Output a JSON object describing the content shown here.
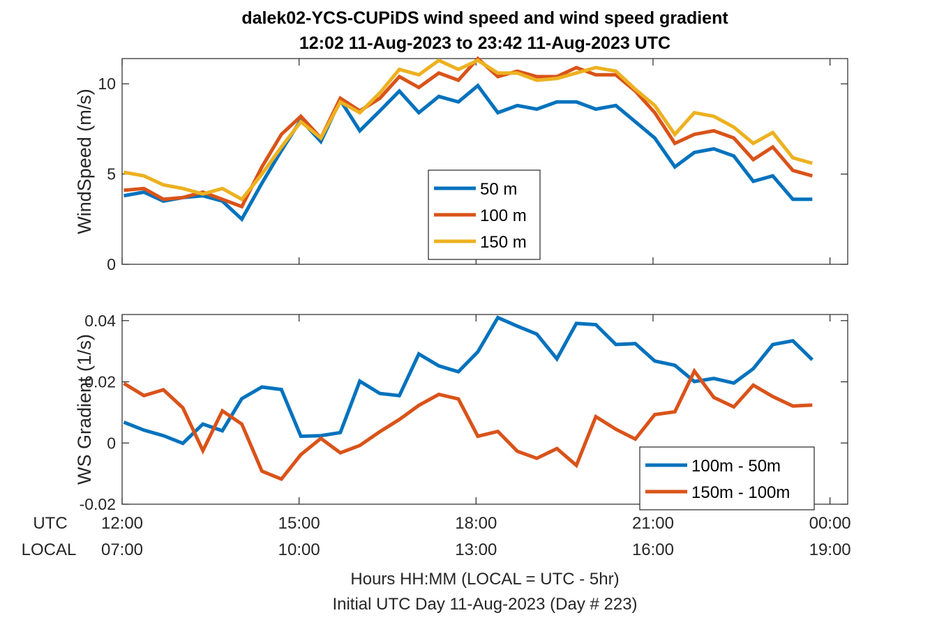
{
  "title_line1": "dalek02-YCS-CUPiDS  wind speed and wind speed gradient",
  "title_line2": "12:02 11-Aug-2023 to 23:42 11-Aug-2023  UTC",
  "xlabel_line1": "Hours HH:MM  (LOCAL = UTC - 5hr)",
  "xlabel_line2": "Initial UTC Day 11-Aug-2023 (Day # 223)",
  "utc_row_label": "UTC",
  "local_row_label": "LOCAL",
  "utc_ticks": [
    "12:00",
    "15:00",
    "18:00",
    "21:00",
    "00:00"
  ],
  "local_ticks": [
    "07:00",
    "10:00",
    "13:00",
    "16:00",
    "19:00"
  ],
  "colors": {
    "blue": "#0072BD",
    "orange": "#D95319",
    "yellow": "#EDB120"
  },
  "chart_data": [
    {
      "type": "line",
      "ylabel": "WindSpeed (m/s)",
      "xlim": [
        12.0,
        24.3
      ],
      "ylim": [
        0,
        11.4
      ],
      "yticks": [
        0,
        5,
        10
      ],
      "ytick_labels": [
        "0",
        "5",
        "10"
      ],
      "legend_position": "center",
      "x": [
        12.03,
        12.37,
        12.7,
        13.03,
        13.37,
        13.7,
        14.03,
        14.37,
        14.7,
        15.03,
        15.37,
        15.7,
        16.03,
        16.37,
        16.7,
        17.03,
        17.37,
        17.7,
        18.03,
        18.37,
        18.7,
        19.03,
        19.37,
        19.7,
        20.03,
        20.37,
        20.7,
        21.03,
        21.37,
        21.7,
        22.03,
        22.37,
        22.7,
        23.03,
        23.37,
        23.7
      ],
      "series": [
        {
          "name": "50 m",
          "color": "blue",
          "values": [
            3.8,
            4.0,
            3.5,
            3.7,
            3.8,
            3.5,
            2.5,
            4.5,
            6.3,
            8.0,
            6.8,
            9.1,
            7.4,
            8.5,
            9.6,
            8.4,
            9.3,
            9.0,
            9.9,
            8.4,
            8.8,
            8.6,
            9.0,
            9.0,
            8.6,
            8.8,
            7.9,
            7.0,
            5.4,
            6.2,
            6.4,
            6.0,
            4.6,
            4.9,
            3.6,
            3.6
          ]
        },
        {
          "name": "100 m",
          "color": "orange",
          "values": [
            4.1,
            4.2,
            3.6,
            3.7,
            4.0,
            3.6,
            3.2,
            5.4,
            7.2,
            8.2,
            7.0,
            9.2,
            8.5,
            9.2,
            10.4,
            9.8,
            10.6,
            10.2,
            11.4,
            10.4,
            10.7,
            10.4,
            10.4,
            10.9,
            10.5,
            10.5,
            9.6,
            8.4,
            6.7,
            7.2,
            7.4,
            7.0,
            5.8,
            6.5,
            5.2,
            4.9
          ]
        },
        {
          "name": "150 m",
          "color": "yellow",
          "values": [
            5.1,
            4.9,
            4.4,
            4.2,
            3.9,
            4.2,
            3.6,
            5.0,
            6.5,
            7.9,
            7.0,
            9.0,
            8.4,
            9.5,
            10.8,
            10.5,
            11.3,
            10.8,
            11.3,
            10.6,
            10.6,
            10.2,
            10.3,
            10.6,
            10.9,
            10.7,
            9.7,
            8.8,
            7.2,
            8.4,
            8.2,
            7.6,
            6.7,
            7.3,
            5.9,
            5.6
          ]
        }
      ]
    },
    {
      "type": "line",
      "ylabel": "WS Gradient (1/s)",
      "xlim": [
        12.0,
        24.3
      ],
      "ylim": [
        -0.02,
        0.042
      ],
      "yticks": [
        -0.02,
        0,
        0.02,
        0.04
      ],
      "ytick_labels": [
        "-0.02",
        "0",
        "0.02",
        "0.04"
      ],
      "legend_position": "bottom-right",
      "x": [
        12.03,
        12.37,
        12.7,
        13.03,
        13.37,
        13.7,
        14.03,
        14.37,
        14.7,
        15.03,
        15.37,
        15.7,
        16.03,
        16.37,
        16.7,
        17.03,
        17.37,
        17.7,
        18.03,
        18.37,
        18.7,
        19.03,
        19.37,
        19.7,
        20.03,
        20.37,
        20.7,
        21.03,
        21.37,
        21.7,
        22.03,
        22.37,
        22.7,
        23.03,
        23.37,
        23.7
      ],
      "series": [
        {
          "name": "100m - 50m",
          "color": "blue",
          "values": [
            0.0068,
            0.0042,
            0.0024,
            -0.0001,
            0.0062,
            0.004,
            0.0145,
            0.0183,
            0.0175,
            0.0022,
            0.0024,
            0.0034,
            0.0202,
            0.0162,
            0.0155,
            0.0291,
            0.0252,
            0.0233,
            0.0298,
            0.041,
            0.0382,
            0.0356,
            0.0275,
            0.0391,
            0.0387,
            0.0322,
            0.0325,
            0.0268,
            0.0254,
            0.0201,
            0.0211,
            0.0196,
            0.0243,
            0.0322,
            0.0334,
            0.0272
          ]
        },
        {
          "name": "150m - 100m",
          "color": "orange",
          "values": [
            0.0195,
            0.0155,
            0.0174,
            0.0115,
            -0.0025,
            0.0105,
            0.0062,
            -0.0092,
            -0.0118,
            -0.0038,
            0.0015,
            -0.0032,
            -0.0008,
            0.0037,
            0.0077,
            0.0123,
            0.0159,
            0.0144,
            0.0022,
            0.0038,
            -0.0027,
            -0.005,
            -0.0018,
            -0.0073,
            0.0086,
            0.0045,
            0.0013,
            0.0093,
            0.0102,
            0.0235,
            0.0149,
            0.0118,
            0.0189,
            0.0152,
            0.0121,
            0.0124
          ]
        }
      ]
    }
  ]
}
